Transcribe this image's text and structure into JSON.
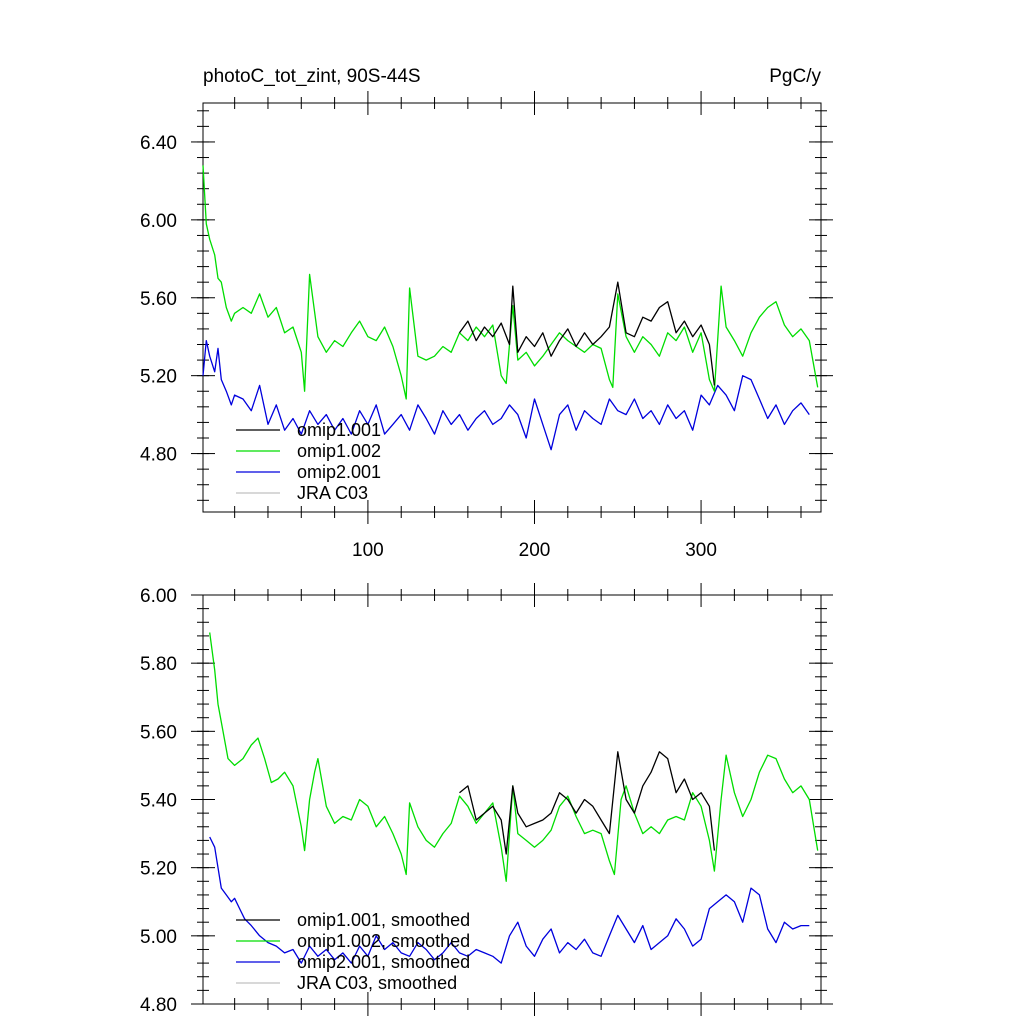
{
  "chart_data": [
    {
      "type": "line",
      "title": "photoC_tot_zint, 90S-44S",
      "units": "PgC/y",
      "xlim": [
        1,
        372
      ],
      "ylim": [
        4.5,
        6.6
      ],
      "x_ticks": [
        100,
        200,
        300
      ],
      "y_ticks": [
        4.8,
        5.2,
        5.6,
        6.0,
        6.4
      ],
      "y_tick_labels": [
        "4.80",
        "5.20",
        "5.60",
        "6.00",
        "6.40"
      ],
      "x_tick_labels": [
        "100",
        "200",
        "300"
      ],
      "legend": {
        "position": "bottom-left",
        "entries": [
          "omip1.001",
          "omip1.002",
          "omip2.001",
          "JRA C03"
        ]
      },
      "series": [
        {
          "name": "omip1.001",
          "color": "#000000",
          "x": [
            155,
            160,
            165,
            170,
            175,
            180,
            185,
            187,
            190,
            195,
            200,
            205,
            210,
            215,
            220,
            225,
            230,
            235,
            240,
            245,
            250,
            255,
            260,
            265,
            270,
            275,
            280,
            285,
            290,
            295,
            300,
            305,
            308
          ],
          "values": [
            5.42,
            5.48,
            5.38,
            5.45,
            5.4,
            5.47,
            5.36,
            5.66,
            5.32,
            5.4,
            5.35,
            5.42,
            5.3,
            5.38,
            5.44,
            5.35,
            5.42,
            5.36,
            5.4,
            5.45,
            5.68,
            5.42,
            5.4,
            5.5,
            5.48,
            5.55,
            5.58,
            5.42,
            5.48,
            5.4,
            5.46,
            5.36,
            5.15
          ]
        },
        {
          "name": "omip1.002",
          "color": "#00dd00",
          "x": [
            1,
            3,
            5,
            8,
            10,
            12,
            15,
            18,
            20,
            25,
            30,
            35,
            40,
            45,
            50,
            55,
            60,
            62,
            65,
            70,
            75,
            80,
            85,
            90,
            95,
            100,
            105,
            110,
            115,
            120,
            123,
            125,
            130,
            135,
            140,
            145,
            150,
            155,
            160,
            165,
            170,
            175,
            180,
            183,
            187,
            190,
            195,
            200,
            205,
            210,
            215,
            220,
            225,
            230,
            235,
            240,
            245,
            247,
            250,
            255,
            260,
            265,
            270,
            275,
            280,
            285,
            290,
            295,
            300,
            305,
            308,
            312,
            315,
            320,
            325,
            330,
            335,
            340,
            345,
            350,
            355,
            360,
            365,
            370
          ],
          "values": [
            6.28,
            5.98,
            5.9,
            5.82,
            5.7,
            5.68,
            5.55,
            5.48,
            5.52,
            5.55,
            5.52,
            5.62,
            5.5,
            5.55,
            5.42,
            5.45,
            5.32,
            5.12,
            5.72,
            5.4,
            5.32,
            5.38,
            5.35,
            5.42,
            5.48,
            5.4,
            5.38,
            5.45,
            5.35,
            5.2,
            5.08,
            5.65,
            5.3,
            5.28,
            5.3,
            5.35,
            5.32,
            5.42,
            5.38,
            5.45,
            5.4,
            5.46,
            5.2,
            5.16,
            5.56,
            5.28,
            5.32,
            5.25,
            5.3,
            5.36,
            5.42,
            5.38,
            5.35,
            5.32,
            5.36,
            5.34,
            5.18,
            5.14,
            5.62,
            5.4,
            5.32,
            5.4,
            5.36,
            5.3,
            5.42,
            5.38,
            5.45,
            5.32,
            5.42,
            5.18,
            5.12,
            5.66,
            5.45,
            5.38,
            5.3,
            5.42,
            5.5,
            5.55,
            5.58,
            5.46,
            5.4,
            5.44,
            5.38,
            5.14
          ]
        },
        {
          "name": "omip2.001",
          "color": "#0000dd",
          "x": [
            1,
            3,
            5,
            8,
            10,
            12,
            15,
            18,
            20,
            25,
            30,
            35,
            40,
            45,
            50,
            55,
            60,
            65,
            70,
            75,
            80,
            85,
            90,
            95,
            100,
            105,
            110,
            115,
            120,
            125,
            130,
            135,
            140,
            145,
            150,
            155,
            160,
            165,
            170,
            175,
            180,
            185,
            190,
            195,
            200,
            205,
            210,
            215,
            220,
            225,
            230,
            235,
            240,
            245,
            250,
            255,
            260,
            265,
            270,
            275,
            280,
            285,
            290,
            295,
            300,
            305,
            310,
            315,
            320,
            325,
            330,
            335,
            340,
            345,
            350,
            355,
            360,
            365
          ],
          "values": [
            5.2,
            5.38,
            5.3,
            5.22,
            5.34,
            5.18,
            5.12,
            5.05,
            5.1,
            5.08,
            5.02,
            5.15,
            4.95,
            5.05,
            4.92,
            4.98,
            4.9,
            5.02,
            4.95,
            5.0,
            4.92,
            4.98,
            4.9,
            5.02,
            4.95,
            5.05,
            4.9,
            4.95,
            5.0,
            4.92,
            5.05,
            4.98,
            4.9,
            5.02,
            4.95,
            5.0,
            4.92,
            4.98,
            5.02,
            4.95,
            4.98,
            5.05,
            5.0,
            4.88,
            5.08,
            4.95,
            4.82,
            5.0,
            5.05,
            4.92,
            5.02,
            4.98,
            4.95,
            5.08,
            5.02,
            5.0,
            5.08,
            4.98,
            5.02,
            4.95,
            5.05,
            4.98,
            5.02,
            4.92,
            5.1,
            5.05,
            5.15,
            5.1,
            5.02,
            5.2,
            5.18,
            5.08,
            4.98,
            5.05,
            4.95,
            5.02,
            5.06,
            5.0
          ]
        },
        {
          "name": "JRA C03",
          "color": "#c0c0c0",
          "x": [],
          "values": []
        }
      ]
    },
    {
      "type": "line",
      "xlim": [
        1,
        372
      ],
      "ylim": [
        4.8,
        6.0
      ],
      "x_ticks": [
        100,
        200,
        300
      ],
      "y_ticks": [
        4.8,
        5.0,
        5.2,
        5.4,
        5.6,
        5.8,
        6.0
      ],
      "y_tick_labels": [
        "4.80",
        "5.00",
        "5.20",
        "5.40",
        "5.60",
        "5.80",
        "6.00"
      ],
      "legend": {
        "position": "bottom-left",
        "entries": [
          "omip1.001, smoothed",
          "omip1.002, smoothed",
          "omip2.001, smoothed",
          "JRA C03, smoothed"
        ]
      },
      "series": [
        {
          "name": "omip1.001, smoothed",
          "color": "#000000",
          "x": [
            155,
            160,
            165,
            170,
            175,
            180,
            183,
            187,
            190,
            195,
            200,
            205,
            210,
            215,
            220,
            225,
            230,
            235,
            240,
            245,
            250,
            255,
            260,
            265,
            270,
            275,
            280,
            285,
            290,
            295,
            300,
            305,
            308
          ],
          "values": [
            5.42,
            5.44,
            5.34,
            5.36,
            5.38,
            5.34,
            5.24,
            5.44,
            5.36,
            5.32,
            5.33,
            5.34,
            5.36,
            5.42,
            5.4,
            5.36,
            5.4,
            5.38,
            5.34,
            5.3,
            5.54,
            5.4,
            5.36,
            5.44,
            5.48,
            5.54,
            5.52,
            5.42,
            5.46,
            5.4,
            5.42,
            5.38,
            5.25
          ]
        },
        {
          "name": "omip1.002, smoothed",
          "color": "#00dd00",
          "x": [
            5,
            8,
            10,
            13,
            16,
            20,
            25,
            30,
            34,
            38,
            42,
            46,
            50,
            55,
            60,
            62,
            65,
            68,
            70,
            75,
            80,
            85,
            90,
            95,
            100,
            105,
            110,
            115,
            120,
            123,
            125,
            130,
            135,
            140,
            145,
            150,
            155,
            160,
            165,
            170,
            175,
            180,
            183,
            187,
            190,
            195,
            200,
            205,
            210,
            215,
            220,
            225,
            230,
            235,
            240,
            245,
            248,
            252,
            255,
            260,
            265,
            270,
            275,
            280,
            285,
            290,
            295,
            300,
            305,
            308,
            312,
            315,
            320,
            325,
            330,
            335,
            340,
            345,
            350,
            355,
            360,
            365,
            370
          ],
          "values": [
            5.89,
            5.78,
            5.68,
            5.6,
            5.52,
            5.5,
            5.52,
            5.56,
            5.58,
            5.52,
            5.45,
            5.46,
            5.48,
            5.44,
            5.32,
            5.25,
            5.4,
            5.48,
            5.52,
            5.38,
            5.33,
            5.35,
            5.34,
            5.4,
            5.38,
            5.32,
            5.35,
            5.3,
            5.24,
            5.18,
            5.39,
            5.32,
            5.28,
            5.26,
            5.3,
            5.33,
            5.41,
            5.38,
            5.33,
            5.36,
            5.39,
            5.26,
            5.16,
            5.44,
            5.3,
            5.28,
            5.26,
            5.28,
            5.31,
            5.38,
            5.41,
            5.35,
            5.3,
            5.31,
            5.3,
            5.22,
            5.18,
            5.4,
            5.44,
            5.36,
            5.3,
            5.32,
            5.3,
            5.34,
            5.35,
            5.34,
            5.42,
            5.38,
            5.28,
            5.19,
            5.4,
            5.53,
            5.42,
            5.35,
            5.4,
            5.48,
            5.53,
            5.52,
            5.46,
            5.42,
            5.44,
            5.4,
            5.25
          ]
        },
        {
          "name": "omip2.001, smoothed",
          "color": "#0000dd",
          "x": [
            5,
            8,
            10,
            12,
            15,
            18,
            20,
            23,
            26,
            30,
            35,
            40,
            45,
            50,
            55,
            60,
            65,
            70,
            75,
            80,
            85,
            90,
            95,
            100,
            105,
            110,
            115,
            120,
            125,
            130,
            135,
            140,
            145,
            150,
            155,
            160,
            165,
            170,
            175,
            180,
            185,
            190,
            195,
            200,
            205,
            210,
            215,
            220,
            225,
            230,
            235,
            240,
            245,
            250,
            255,
            260,
            265,
            270,
            275,
            280,
            285,
            290,
            295,
            300,
            305,
            310,
            315,
            320,
            325,
            330,
            335,
            340,
            345,
            350,
            355,
            360,
            365
          ],
          "values": [
            5.29,
            5.26,
            5.2,
            5.14,
            5.12,
            5.1,
            5.11,
            5.08,
            5.05,
            5.03,
            5.0,
            4.98,
            4.97,
            4.95,
            4.96,
            4.92,
            4.97,
            4.94,
            4.96,
            4.93,
            4.95,
            4.92,
            4.97,
            4.94,
            5.0,
            4.96,
            4.98,
            4.95,
            4.94,
            4.98,
            4.96,
            4.93,
            4.95,
            4.98,
            4.95,
            4.94,
            4.96,
            4.95,
            4.94,
            4.92,
            5.0,
            5.04,
            4.97,
            4.94,
            4.99,
            5.02,
            4.95,
            4.98,
            4.96,
            4.99,
            4.95,
            4.94,
            5.0,
            5.06,
            5.02,
            4.98,
            5.03,
            4.96,
            4.98,
            5.0,
            5.05,
            5.02,
            4.97,
            4.99,
            5.08,
            5.1,
            5.12,
            5.1,
            5.04,
            5.14,
            5.12,
            5.02,
            4.98,
            5.04,
            5.02,
            5.03,
            5.03
          ]
        },
        {
          "name": "JRA C03, smoothed",
          "color": "#c0c0c0",
          "x": [],
          "values": []
        }
      ]
    }
  ]
}
